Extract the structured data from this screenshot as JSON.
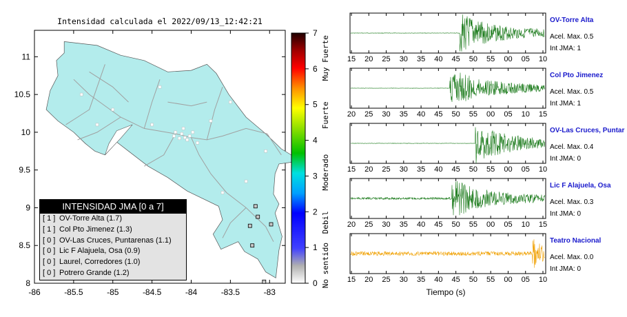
{
  "map": {
    "title": "Intensidad calculada el 2022/09/13_12:42:21",
    "lat_ticks": [
      "11",
      "10.5",
      "10",
      "9.5",
      "9",
      "8.5",
      "8"
    ],
    "lon_ticks": [
      "-86",
      "-85.5",
      "-85",
      "-84.5",
      "-84",
      "-83.5",
      "-83"
    ],
    "lon_range": [
      -86,
      -82.8
    ],
    "lat_range": [
      8,
      11.35
    ]
  },
  "colorbar": {
    "ticks": [
      "0",
      "1",
      "2",
      "3",
      "4",
      "5",
      "6",
      "7"
    ],
    "labels": [
      "No sentido",
      "Debil",
      "Moderado",
      "Fuerte",
      "Muy Fuerte"
    ]
  },
  "legend": {
    "title": "INTENSIDAD JMA [0 a 7]",
    "rows": [
      {
        "level": "[ 1 ]",
        "text": "OV-Torre Alta (1.7)"
      },
      {
        "level": "[ 1 ]",
        "text": "Col Pto Jimenez (1.3)"
      },
      {
        "level": "[ 0 ]",
        "text": "OV-Las Cruces, Puntarenas (1.1)"
      },
      {
        "level": "[ 0 ]",
        "text": "Lic F Alajuela, Osa (0.9)"
      },
      {
        "level": "[ 0 ]",
        "text": "Laurel, Corredores (1.0)"
      },
      {
        "level": "[ 0 ]",
        "text": "Potrero Grande (1.2)"
      }
    ]
  },
  "waveforms": {
    "xlabel": "Tiempo (s)",
    "panels": [
      {
        "name": "OV-Torre Alta",
        "acel": "Acel. Max. 0.5",
        "jma": "Int JMA: 1",
        "color": "#1a7a1a",
        "ticks": [
          "15",
          "20",
          "25",
          "30",
          "35",
          "40",
          "45",
          "50",
          "55",
          "00",
          "05",
          "10"
        ],
        "onset_fraction": 0.56
      },
      {
        "name": "Col Pto Jimenez",
        "acel": "Acel. Max. 0.5",
        "jma": "Int JMA: 1",
        "color": "#1a7a1a",
        "ticks": [
          "20",
          "25",
          "30",
          "35",
          "40",
          "45",
          "50",
          "55",
          "00",
          "05",
          "10",
          "15"
        ],
        "onset_fraction": 0.51
      },
      {
        "name": "OV-Las Cruces, Puntar",
        "acel": "Acel. Max. 0.4",
        "jma": "Int JMA: 0",
        "color": "#1a7a1a",
        "ticks": [
          "15",
          "20",
          "25",
          "30",
          "35",
          "40",
          "45",
          "50",
          "55",
          "00",
          "05",
          "10"
        ],
        "onset_fraction": 0.64
      },
      {
        "name": "Lic F Alajuela, Osa",
        "acel": "Acel. Max. 0.3",
        "jma": "Int JMA: 0",
        "color": "#1a7a1a",
        "ticks": [
          "20",
          "25",
          "30",
          "35",
          "40",
          "45",
          "50",
          "55",
          "00",
          "05",
          "10",
          "15"
        ],
        "onset_fraction": 0.52
      },
      {
        "name": "Teatro Nacional",
        "acel": "Acel. Max. 0.0",
        "jma": "Int JMA: 0",
        "color": "#f0a000",
        "ticks": [
          "15",
          "20",
          "25",
          "30",
          "35",
          "40",
          "45",
          "50",
          "55",
          "00",
          "05",
          "10"
        ],
        "onset_fraction": 0.93
      }
    ]
  }
}
